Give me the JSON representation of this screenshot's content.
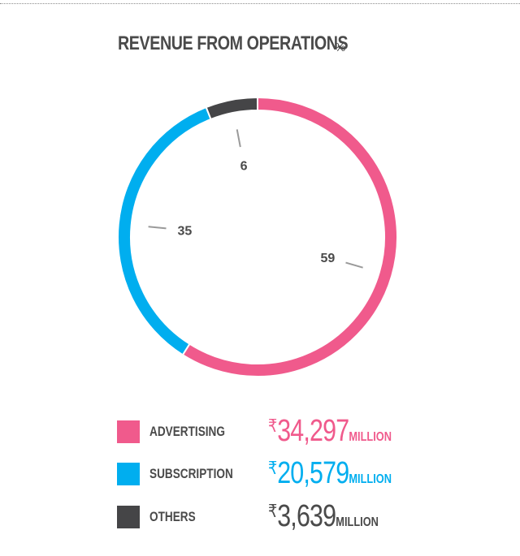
{
  "header": {
    "title": "REVENUE FROM OPERATIONS",
    "unit": "%"
  },
  "chart_data": {
    "type": "pie",
    "style": "donut",
    "categories": [
      "ADVERTISING",
      "SUBSCRIPTION",
      "OTHERS"
    ],
    "values": [
      59,
      35,
      6
    ],
    "data_labels": [
      "59",
      "35",
      "6"
    ],
    "colors": [
      "#f05a8c",
      "#00aeef",
      "#454547"
    ],
    "start": "top, clockwise"
  },
  "legend": [
    {
      "label": "ADVERTISING",
      "currency": "₹",
      "amount": "34,297",
      "suffix": "MILLION",
      "color": "#f05a8c",
      "text_color": "#f05a8c"
    },
    {
      "label": "SUBSCRIPTION",
      "currency": "₹",
      "amount": "20,579",
      "suffix": "MILLION",
      "color": "#00aeef",
      "text_color": "#00aeef"
    },
    {
      "label": "OTHERS",
      "currency": "₹",
      "amount": "3,639",
      "suffix": "MILLION",
      "color": "#454547",
      "text_color": "#4a4a4a"
    }
  ]
}
